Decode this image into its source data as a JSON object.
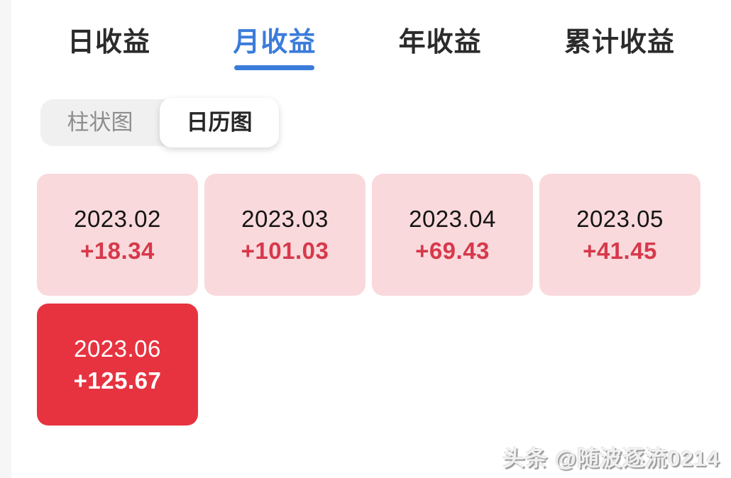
{
  "tabs": [
    {
      "label": "日收益",
      "active": false
    },
    {
      "label": "月收益",
      "active": true
    },
    {
      "label": "年收益",
      "active": false
    },
    {
      "label": "累计收益",
      "active": false
    }
  ],
  "view_toggle": {
    "options": [
      {
        "label": "柱状图",
        "active": false
      },
      {
        "label": "日历图",
        "active": true
      }
    ]
  },
  "calendar": {
    "cells": [
      {
        "date": "2023.02",
        "value": "+18.34",
        "highlight": false
      },
      {
        "date": "2023.03",
        "value": "+101.03",
        "highlight": false
      },
      {
        "date": "2023.04",
        "value": "+69.43",
        "highlight": false
      },
      {
        "date": "2023.05",
        "value": "+41.45",
        "highlight": false
      },
      {
        "date": "2023.06",
        "value": "+125.67",
        "highlight": true
      }
    ]
  },
  "watermark": "头条 @随波逐流0214",
  "colors": {
    "accent_blue": "#3b7cdb",
    "cell_pink": "#f9d9dc",
    "cell_red": "#e73340",
    "value_red": "#d6394b"
  },
  "chart_data": {
    "type": "heatmap",
    "title": "月收益 日历图",
    "categories": [
      "2023.02",
      "2023.03",
      "2023.04",
      "2023.05",
      "2023.06"
    ],
    "values": [
      18.34,
      101.03,
      69.43,
      41.45,
      125.67
    ],
    "legend_position": "none",
    "notes": "calendar-style monthly profit cells; highest month (2023.06) shown with solid red cell"
  }
}
